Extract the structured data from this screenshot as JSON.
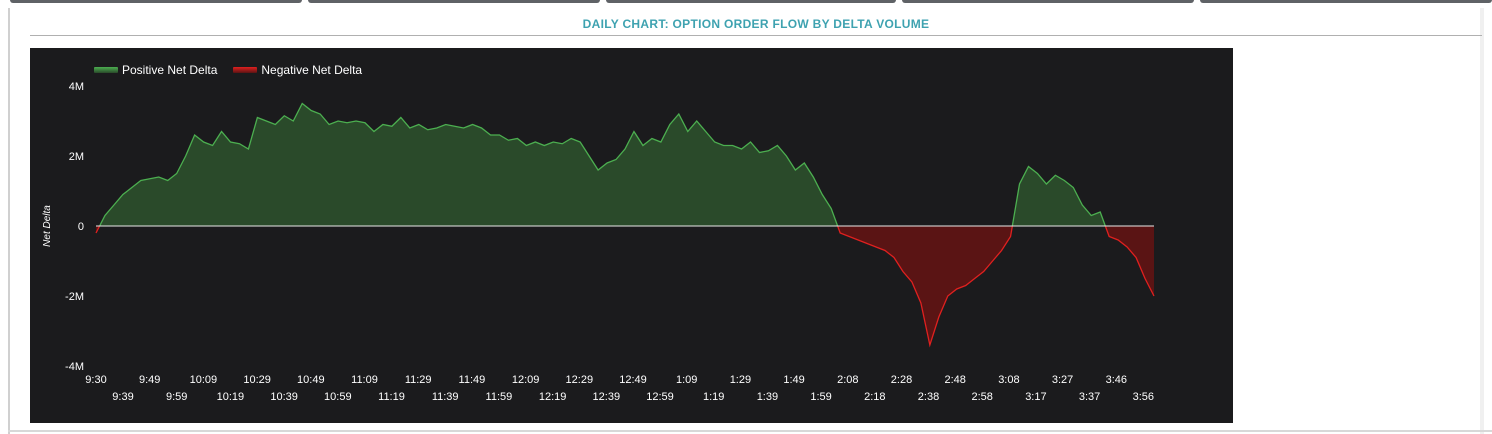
{
  "chart_data": {
    "type": "area",
    "title": "DAILY CHART: OPTION ORDER FLOW BY DELTA VOLUME",
    "ylabel": "Net Delta",
    "ylim": [
      -4000000,
      4000000
    ],
    "yticks": [
      {
        "value": 4000000,
        "label": "4M"
      },
      {
        "value": 2000000,
        "label": "2M"
      },
      {
        "value": 0,
        "label": "0"
      },
      {
        "value": -2000000,
        "label": "-2M"
      },
      {
        "value": -4000000,
        "label": "-4M"
      }
    ],
    "xticks_row1": [
      "9:30",
      "9:49",
      "10:09",
      "10:29",
      "10:49",
      "11:09",
      "11:29",
      "11:49",
      "12:09",
      "12:29",
      "12:49",
      "1:09",
      "1:29",
      "1:49",
      "2:08",
      "2:28",
      "2:48",
      "3:08",
      "3:27",
      "3:46"
    ],
    "xticks_row2": [
      "9:39",
      "9:59",
      "10:19",
      "10:39",
      "10:59",
      "11:19",
      "11:39",
      "11:59",
      "12:19",
      "12:39",
      "12:59",
      "1:19",
      "1:39",
      "1:59",
      "2:18",
      "2:38",
      "2:58",
      "3:17",
      "3:37",
      "3:56"
    ],
    "legend_placement": "top-left",
    "grid": false,
    "series": [
      {
        "name": "Positive Net Delta",
        "color": "#4caf50",
        "fill": "#2a4a2a"
      },
      {
        "name": "Negative Net Delta",
        "color": "#e0201f",
        "fill": "#5a1414"
      }
    ],
    "x": [
      "9:30",
      "9:34",
      "9:37",
      "9:40",
      "9:43",
      "9:46",
      "9:49",
      "9:53",
      "9:56",
      "9:59",
      "10:03",
      "10:06",
      "10:09",
      "10:13",
      "10:16",
      "10:19",
      "10:22",
      "10:26",
      "10:29",
      "10:32",
      "10:36",
      "10:39",
      "10:42",
      "10:46",
      "10:49",
      "10:52",
      "10:56",
      "10:59",
      "11:02",
      "11:06",
      "11:09",
      "11:12",
      "11:16",
      "11:19",
      "11:22",
      "11:26",
      "11:29",
      "11:32",
      "11:36",
      "11:39",
      "11:42",
      "11:46",
      "11:49",
      "11:52",
      "11:56",
      "11:59",
      "12:02",
      "12:06",
      "12:09",
      "12:12",
      "12:16",
      "12:19",
      "12:22",
      "12:26",
      "12:29",
      "12:32",
      "12:36",
      "12:39",
      "12:42",
      "12:46",
      "12:49",
      "12:52",
      "12:56",
      "12:59",
      "1:02",
      "1:06",
      "1:09",
      "1:12",
      "1:16",
      "1:19",
      "1:22",
      "1:26",
      "1:29",
      "1:32",
      "1:36",
      "1:39",
      "1:42",
      "1:46",
      "1:49",
      "1:52",
      "1:56",
      "1:59",
      "2:02",
      "2:05",
      "2:08",
      "2:11",
      "2:14",
      "2:18",
      "2:21",
      "2:24",
      "2:28",
      "2:31",
      "2:34",
      "2:38",
      "2:41",
      "2:44",
      "2:48",
      "2:51",
      "2:54",
      "2:58",
      "3:01",
      "3:04",
      "3:08",
      "3:11",
      "3:14",
      "3:17",
      "3:20",
      "3:24",
      "3:27",
      "3:30",
      "3:33",
      "3:37",
      "3:40",
      "3:43",
      "3:46",
      "3:49",
      "3:52",
      "3:56",
      "3:58"
    ],
    "values": [
      -200000,
      300000,
      600000,
      900000,
      1100000,
      1300000,
      1350000,
      1400000,
      1300000,
      1500000,
      2000000,
      2600000,
      2400000,
      2300000,
      2700000,
      2400000,
      2350000,
      2200000,
      3100000,
      3000000,
      2900000,
      3150000,
      3000000,
      3500000,
      3300000,
      3200000,
      2900000,
      3000000,
      2950000,
      3000000,
      2950000,
      2700000,
      2900000,
      2850000,
      3100000,
      2800000,
      2900000,
      2750000,
      2800000,
      2900000,
      2850000,
      2800000,
      2900000,
      2800000,
      2600000,
      2600000,
      2450000,
      2500000,
      2300000,
      2400000,
      2300000,
      2400000,
      2350000,
      2500000,
      2400000,
      2000000,
      1600000,
      1800000,
      1900000,
      2200000,
      2700000,
      2300000,
      2500000,
      2400000,
      2900000,
      3200000,
      2700000,
      3000000,
      2700000,
      2400000,
      2300000,
      2300000,
      2200000,
      2400000,
      2100000,
      2150000,
      2300000,
      2000000,
      1600000,
      1800000,
      1400000,
      900000,
      500000,
      -200000,
      -300000,
      -400000,
      -500000,
      -600000,
      -700000,
      -900000,
      -1300000,
      -1600000,
      -2200000,
      -3400000,
      -2600000,
      -2000000,
      -1800000,
      -1700000,
      -1500000,
      -1300000,
      -1000000,
      -700000,
      -300000,
      1200000,
      1700000,
      1500000,
      1200000,
      1450000,
      1300000,
      1100000,
      600000,
      300000,
      400000,
      -300000,
      -400000,
      -600000,
      -900000,
      -1500000,
      -2000000
    ]
  }
}
